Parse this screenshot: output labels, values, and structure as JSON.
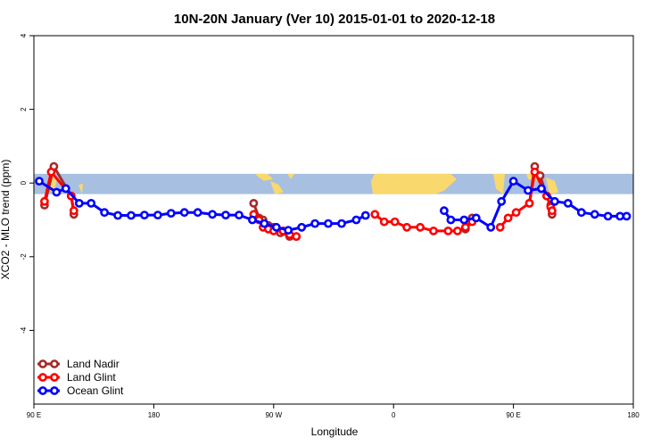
{
  "chart_data": {
    "type": "line",
    "title": "10N-20N January (Ver 10)   2015-01-01 to 2020-12-18",
    "xlabel": "Longitude",
    "ylabel": "XCO2 - MLO trend (ppm)",
    "xlim": [
      90,
      540
    ],
    "ylim": [
      -6,
      4
    ],
    "x_ticks": [
      {
        "value": 90,
        "label": "90 E"
      },
      {
        "value": 180,
        "label": "180"
      },
      {
        "value": 270,
        "label": "90 W"
      },
      {
        "value": 360,
        "label": "0"
      },
      {
        "value": 450,
        "label": "90 E"
      },
      {
        "value": 540,
        "label": "180"
      }
    ],
    "y_ticks": [
      {
        "value": -4,
        "label": "-4"
      },
      {
        "value": -2,
        "label": "-2"
      },
      {
        "value": 0,
        "label": "0"
      },
      {
        "value": 2,
        "label": "2"
      },
      {
        "value": 4,
        "label": "4"
      }
    ],
    "map_band": {
      "ymin": -0.3,
      "ymax": 0.25,
      "ocean_color": "#a7bfe0",
      "land_color": "#f9d86e"
    },
    "legend_position": "bottom-left",
    "series": [
      {
        "name": "Land Nadir",
        "color": "#a52a2a",
        "points": [
          [
            98,
            -0.6
          ],
          [
            105,
            0.45
          ],
          [
            118,
            -0.35
          ],
          [
            120,
            -0.85
          ],
          [
            123,
            -0.85
          ],
          [
            122,
            -0.9
          ],
          [
            122,
            -1.0
          ],
          [
            122,
            -0.9
          ],
          [
            122,
            -0.85
          ],
          [
            122,
            -0.9
          ],
          [
            122,
            -0.88
          ],
          [
            122,
            -0.88
          ],
          [
            122,
            -0.85
          ],
          [
            122,
            -0.85
          ],
          [
            122,
            -0.85
          ],
          [
            122,
            -0.85
          ],
          [
            122,
            -0.85
          ],
          [
            122,
            -0.85
          ],
          [
            122,
            -0.85
          ]
        ],
        "segments": [
          [
            [
              98,
              -0.6
            ],
            [
              105,
              0.45
            ],
            [
              118,
              -0.35
            ],
            [
              120,
              -0.85
            ]
          ],
          [
            [
              255,
              -0.55
            ],
            [
              259,
              -0.95
            ],
            [
              262,
              -1.0
            ],
            [
              266,
              -1.15
            ],
            [
              270,
              -1.2
            ],
            [
              275,
              -1.35
            ],
            [
              282,
              -1.45
            ],
            [
              287,
              -1.45
            ]
          ],
          [
            [
              414,
              -1.25
            ],
            [
              417,
              -1.05
            ],
            [
              419,
              -0.95
            ]
          ],
          [
            [
              462,
              -0.55
            ],
            [
              466,
              0.45
            ],
            [
              470,
              0.2
            ],
            [
              475,
              -0.35
            ],
            [
              478,
              -0.6
            ],
            [
              479,
              -0.85
            ]
          ]
        ]
      },
      {
        "name": "Land Glint",
        "color": "#ff0000",
        "segments": [
          [
            [
              98,
              -0.5
            ],
            [
              103,
              0.3
            ],
            [
              118,
              -0.35
            ],
            [
              120,
              -0.75
            ]
          ],
          [
            [
              255,
              -0.85
            ],
            [
              259,
              -1.0
            ],
            [
              262,
              -1.2
            ],
            [
              266,
              -1.25
            ],
            [
              270,
              -1.3
            ],
            [
              277,
              -1.3
            ],
            [
              282,
              -1.4
            ],
            [
              287,
              -1.45
            ]
          ],
          [
            [
              346,
              -0.85
            ],
            [
              353,
              -1.05
            ],
            [
              361,
              -1.05
            ],
            [
              370,
              -1.2
            ],
            [
              380,
              -1.2
            ],
            [
              390,
              -1.3
            ],
            [
              401,
              -1.3
            ],
            [
              408,
              -1.3
            ],
            [
              414,
              -1.2
            ],
            [
              419,
              -1.05
            ]
          ],
          [
            [
              440,
              -1.2
            ],
            [
              446,
              -0.95
            ],
            [
              452,
              -0.8
            ],
            [
              462,
              -0.55
            ],
            [
              466,
              0.3
            ],
            [
              475,
              -0.35
            ],
            [
              478,
              -0.65
            ],
            [
              479,
              -0.75
            ]
          ]
        ]
      },
      {
        "name": "Ocean Glint",
        "color": "#0000ff",
        "segments": [
          [
            [
              94,
              0.05
            ],
            [
              107,
              -0.25
            ],
            [
              114,
              -0.15
            ],
            [
              124,
              -0.55
            ],
            [
              133,
              -0.55
            ],
            [
              143,
              -0.8
            ],
            [
              153,
              -0.88
            ],
            [
              163,
              -0.88
            ],
            [
              173,
              -0.87
            ],
            [
              183,
              -0.87
            ],
            [
              193,
              -0.82
            ],
            [
              203,
              -0.8
            ],
            [
              213,
              -0.8
            ],
            [
              224,
              -0.85
            ],
            [
              234,
              -0.87
            ],
            [
              244,
              -0.87
            ],
            [
              254,
              -1.0
            ],
            [
              263,
              -1.1
            ],
            [
              272,
              -1.2
            ],
            [
              281,
              -1.28
            ],
            [
              291,
              -1.2
            ],
            [
              301,
              -1.1
            ],
            [
              311,
              -1.1
            ],
            [
              321,
              -1.1
            ],
            [
              332,
              -1.0
            ],
            [
              339,
              -0.88
            ]
          ],
          [
            [
              398,
              -0.75
            ],
            [
              403,
              -1.0
            ],
            [
              413,
              -1.0
            ],
            [
              422,
              -0.95
            ],
            [
              433,
              -1.2
            ],
            [
              441,
              -0.5
            ],
            [
              450,
              0.05
            ],
            [
              461,
              -0.2
            ],
            [
              471,
              -0.15
            ],
            [
              481,
              -0.5
            ],
            [
              491,
              -0.55
            ],
            [
              501,
              -0.8
            ],
            [
              511,
              -0.85
            ],
            [
              521,
              -0.9
            ],
            [
              530,
              -0.9
            ],
            [
              535,
              -0.9
            ]
          ]
        ]
      }
    ]
  }
}
